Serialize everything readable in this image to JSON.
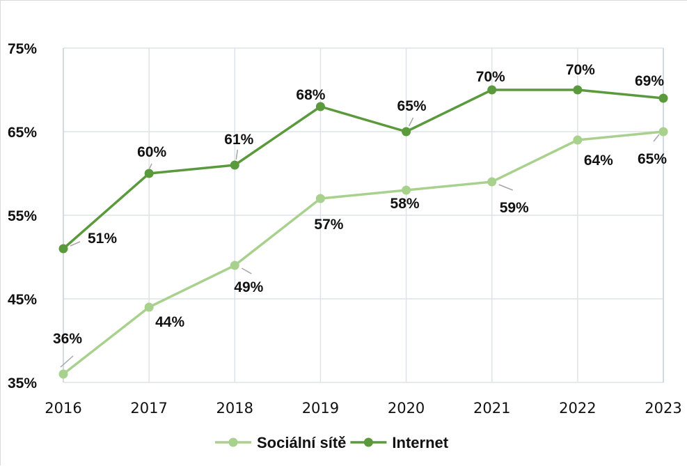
{
  "chart_data": {
    "type": "line",
    "categories": [
      "2016",
      "2017",
      "2018",
      "2019",
      "2020",
      "2021",
      "2022",
      "2023"
    ],
    "y_tick_labels": [
      "35%",
      "45%",
      "55%",
      "65%",
      "75%"
    ],
    "ylim": [
      35,
      75
    ],
    "grid": true,
    "legend_position": "bottom",
    "series": [
      {
        "name": "Sociální sítě",
        "color": "#a9d18e",
        "values": [
          36,
          44,
          49,
          57,
          58,
          59,
          64,
          65
        ],
        "labels": [
          "36%",
          "44%",
          "49%",
          "57%",
          "58%",
          "59%",
          "64%",
          "65%"
        ]
      },
      {
        "name": "Internet",
        "color": "#5b9a3c",
        "values": [
          51,
          60,
          61,
          68,
          65,
          70,
          70,
          69
        ],
        "labels": [
          "51%",
          "60%",
          "61%",
          "68%",
          "65%",
          "70%",
          "70%",
          "69%"
        ]
      }
    ]
  }
}
